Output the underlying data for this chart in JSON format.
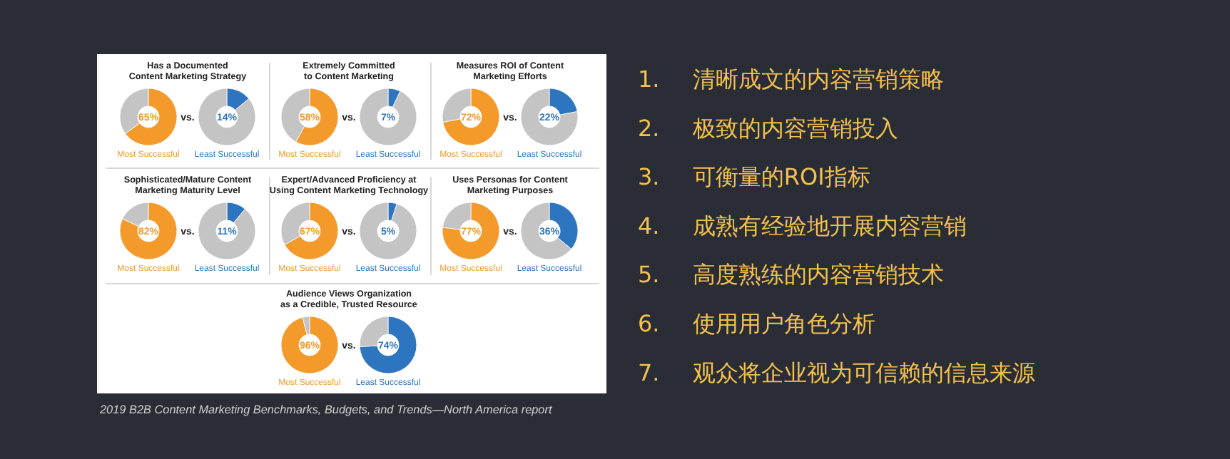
{
  "chart_data": [
    {
      "type": "donut",
      "title": "Has a Documented Content Marketing Strategy",
      "categories": [
        null,
        null
      ],
      "values": [
        65,
        35
      ],
      "colors": [
        "#f39a2b",
        "#c4c4c4"
      ],
      "annotations": [
        "65%",
        "Most Successful",
        "vs."
      ]
    },
    {
      "type": "donut",
      "categories": [
        null,
        null
      ],
      "values": [
        14,
        86
      ],
      "colors": [
        "#2e75c0",
        "#c4c4c4"
      ],
      "annotations": [
        "14%",
        "Least Successful"
      ]
    },
    {
      "type": "donut",
      "title": "Extremely Committed to Content Marketing",
      "categories": [
        null,
        null
      ],
      "values": [
        58,
        42
      ],
      "colors": [
        "#f39a2b",
        "#c4c4c4"
      ],
      "annotations": [
        "58%",
        "Most Successful",
        "vs."
      ]
    },
    {
      "type": "donut",
      "categories": [
        null,
        null
      ],
      "values": [
        7,
        93
      ],
      "colors": [
        "#2e75c0",
        "#c4c4c4"
      ],
      "annotations": [
        "7%",
        "Least Successful"
      ]
    },
    {
      "type": "donut",
      "title": "Measures ROI of Content Marketing Efforts",
      "categories": [
        null,
        null
      ],
      "values": [
        72,
        28
      ],
      "colors": [
        "#f39a2b",
        "#c4c4c4"
      ],
      "annotations": [
        "72%",
        "Most Successful",
        "vs."
      ]
    },
    {
      "type": "donut",
      "categories": [
        null,
        null
      ],
      "values": [
        22,
        78
      ],
      "colors": [
        "#2e75c0",
        "#c4c4c4"
      ],
      "annotations": [
        "22%",
        "Least Successful"
      ]
    },
    {
      "type": "donut",
      "title": "Sophisticated/Mature Content Marketing Maturity Level",
      "categories": [
        null,
        null
      ],
      "values": [
        82,
        18
      ],
      "colors": [
        "#f39a2b",
        "#c4c4c4"
      ],
      "annotations": [
        "82%",
        "Most Successful",
        "vs."
      ]
    },
    {
      "type": "donut",
      "categories": [
        null,
        null
      ],
      "values": [
        11,
        89
      ],
      "colors": [
        "#2e75c0",
        "#c4c4c4"
      ],
      "annotations": [
        "11%",
        "Least Successful"
      ]
    },
    {
      "type": "donut",
      "title": "Expert/Advanced Proficiency at Using Content Marketing Technology",
      "categories": [
        null,
        null
      ],
      "values": [
        67,
        33
      ],
      "colors": [
        "#f39a2b",
        "#c4c4c4"
      ],
      "annotations": [
        "67%",
        "Most Successful",
        "vs."
      ]
    },
    {
      "type": "donut",
      "categories": [
        null,
        null
      ],
      "values": [
        5,
        95
      ],
      "colors": [
        "#2e75c0",
        "#c4c4c4"
      ],
      "annotations": [
        "5%",
        "Least Successful"
      ]
    },
    {
      "type": "donut",
      "title": "Uses Personas for Content Marketing Purposes",
      "categories": [
        null,
        null
      ],
      "values": [
        77,
        23
      ],
      "colors": [
        "#f39a2b",
        "#c4c4c4"
      ],
      "annotations": [
        "77%",
        "Most Successful",
        "vs."
      ]
    },
    {
      "type": "donut",
      "categories": [
        null,
        null
      ],
      "values": [
        36,
        64
      ],
      "colors": [
        "#2e75c0",
        "#c4c4c4"
      ],
      "annotations": [
        "36%",
        "Least Successful"
      ]
    },
    {
      "type": "donut",
      "title": "Audience Views Organization as a Credible, Trusted Resource",
      "categories": [
        null,
        null
      ],
      "values": [
        96,
        4
      ],
      "colors": [
        "#f39a2b",
        "#c4c4c4"
      ],
      "annotations": [
        "96%",
        "Most Successful",
        "vs."
      ]
    },
    {
      "type": "donut",
      "categories": [
        null,
        null
      ],
      "values": [
        74,
        26
      ],
      "colors": [
        "#2e75c0",
        "#c4c4c4"
      ],
      "annotations": [
        "74%",
        "Least Successful"
      ]
    },
    {
      "type": "other",
      "annotations": [
        "2019 B2B Content Marketing Benchmarks, Budgets, and Trends—North America report"
      ]
    },
    {
      "type": "other",
      "annotations": [
        "1. 清晰成文的内容营销策略",
        "2. 极致的内容营销投入",
        "3. 可衡量的ROI指标",
        "4. 成熟有经验地开展内容营销",
        "5. 高度熟练的内容营销技术",
        "6. 使用用户角色分析",
        "7. 观众将企业视为可信赖的信息来源"
      ]
    }
  ]
}
